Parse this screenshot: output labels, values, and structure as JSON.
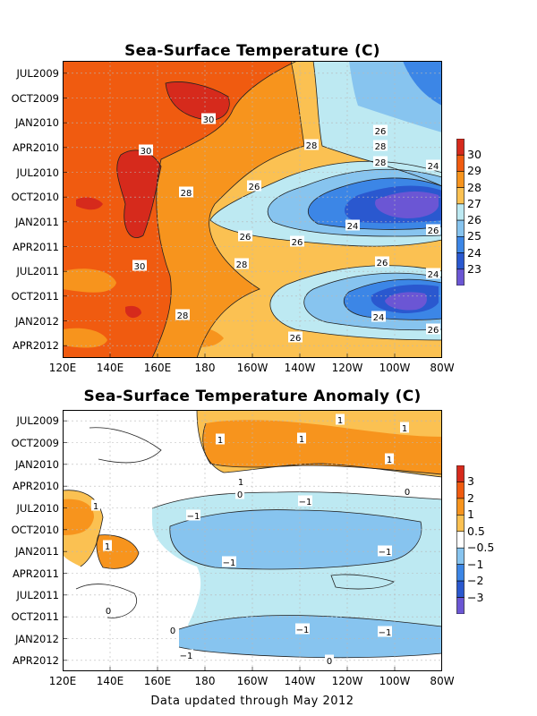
{
  "footer": "Data updated through May 2012",
  "chart_data": [
    {
      "type": "heatmap",
      "title": "Sea-Surface Temperature (C)",
      "y_tick_labels": [
        "JUL2009",
        "OCT2009",
        "JAN2010",
        "APR2010",
        "JUL2010",
        "OCT2010",
        "JAN2011",
        "APR2011",
        "JUL2011",
        "OCT2011",
        "JAN2012",
        "APR2012"
      ],
      "x_tick_labels": [
        "120E",
        "140E",
        "160E",
        "180",
        "160W",
        "140W",
        "120W",
        "100W",
        "80W"
      ],
      "colorbar": {
        "labels": [
          "30",
          "29",
          "28",
          "27",
          "26",
          "25",
          "24",
          "23"
        ],
        "colors": [
          "#d62a1c",
          "#f05b10",
          "#f7941d",
          "#fbc152",
          "#bde9f2",
          "#87c4ef",
          "#3c86e6",
          "#2a58cf",
          "#6b56d4"
        ]
      },
      "contour_labels": [
        "30",
        "30",
        "30",
        "28",
        "28",
        "28",
        "28",
        "28",
        "28",
        "26",
        "26",
        "26",
        "26",
        "26",
        "26",
        "26",
        "24",
        "24",
        "24",
        "24",
        "26"
      ]
    },
    {
      "type": "heatmap",
      "title": "Sea-Surface Temperature Anomaly (C)",
      "y_tick_labels": [
        "JUL2009",
        "OCT2009",
        "JAN2010",
        "APR2010",
        "JUL2010",
        "OCT2010",
        "JAN2011",
        "APR2011",
        "JUL2011",
        "OCT2011",
        "JAN2012",
        "APR2012"
      ],
      "x_tick_labels": [
        "120E",
        "140E",
        "160E",
        "180",
        "160W",
        "140W",
        "120W",
        "100W",
        "80W"
      ],
      "colorbar": {
        "labels": [
          "3",
          "2",
          "1",
          "0.5",
          "−0.5",
          "−1",
          "−2",
          "−3"
        ],
        "colors": [
          "#d62a1c",
          "#f05b10",
          "#f7941d",
          "#fbc152",
          "#ffffff",
          "#87c4ef",
          "#3c86e6",
          "#2a58cf",
          "#6b56d4"
        ]
      },
      "contour_labels": [
        "1",
        "1",
        "1",
        "1",
        "1",
        "1",
        "0",
        "0",
        "0",
        "1",
        "1",
        "0",
        "−1",
        "−1",
        "−1",
        "−1",
        "−1",
        "−1",
        "−1",
        "0"
      ]
    }
  ]
}
